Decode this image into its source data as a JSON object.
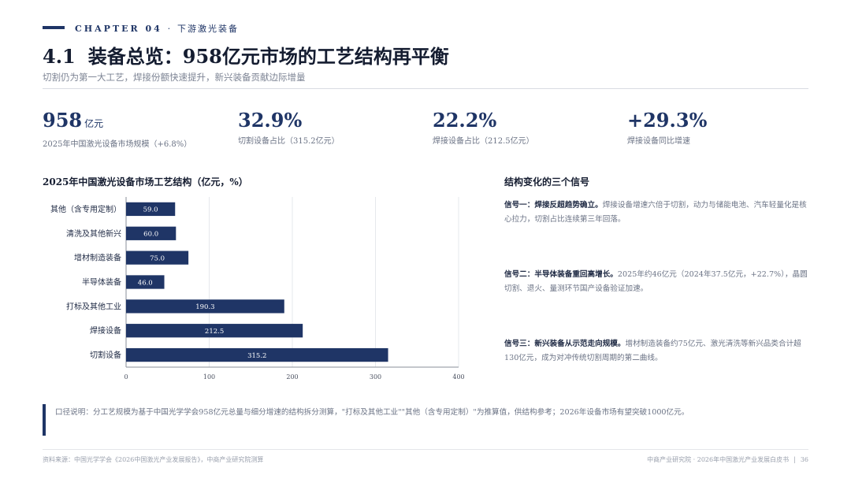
{
  "header": {
    "chapter": "CHAPTER 04",
    "chapter_sep": "·",
    "chapter_sub": "下游激光装备",
    "section_num": "4.1",
    "title": "装备总览：958亿元市场的工艺结构再平衡",
    "subtitle": "切割仍为第一大工艺，焊接份额快速提升，新兴装备贡献边际增量"
  },
  "kpis": [
    {
      "value": "958",
      "unit": "亿元",
      "label": "2025年中国激光设备市场规模（+6.8%）"
    },
    {
      "value": "32.9%",
      "unit": "",
      "label": "切割设备占比（315.2亿元）"
    },
    {
      "value": "22.2%",
      "unit": "",
      "label": "焊接设备占比（212.5亿元）"
    },
    {
      "value": "+29.3%",
      "unit": "",
      "label": "焊接设备同比增速"
    }
  ],
  "chart_title": "2025年中国激光设备市场工艺结构（亿元，%）",
  "chart_data": {
    "type": "bar",
    "orientation": "horizontal",
    "categories": [
      "其他（含专用定制）",
      "清洗及其他新兴",
      "增材制造装备",
      "半导体装备",
      "打标及其他工业",
      "焊接设备",
      "切割设备"
    ],
    "values": [
      59.0,
      60.0,
      75.0,
      46.0,
      190.3,
      212.5,
      315.2
    ],
    "value_labels": [
      "59.0",
      "60.0",
      "75.0",
      "46.0",
      "190.3",
      "212.5",
      "315.2"
    ],
    "xlim": [
      0,
      400
    ],
    "xticks": [
      "0",
      "100",
      "200",
      "300",
      "400"
    ],
    "xtick_values": [
      0,
      100,
      200,
      300,
      400
    ],
    "grid": true,
    "bar_color": "#1f3566"
  },
  "signals": {
    "title": "结构变化的三个信号",
    "items": [
      {
        "lead": "信号一：焊接反超趋势确立。",
        "text": "焊接设备增速六倍于切割，动力与储能电池、汽车轻量化是核心拉力，切割占比连续第三年回落。"
      },
      {
        "lead": "信号二：半导体装备重回高增长。",
        "text": "2025年约46亿元（2024年37.5亿元，+22.7%），晶圆切割、退火、量测环节国产设备验证加速。"
      },
      {
        "lead": "信号三：新兴装备从示范走向规模。",
        "text": "增材制造装备约75亿元、激光清洗等新兴品类合计超130亿元，成为对冲传统切割周期的第二曲线。"
      }
    ]
  },
  "note": "口径说明：分工艺规模为基于中国光学学会958亿元总量与细分增速的结构拆分测算，\"打标及其他工业\"\"其他（含专用定制）\"为推算值，供结构参考；2026年设备市场有望突破1000亿元。",
  "footer": {
    "source": "资料来源：中国光学学会《2026中国激光产业发展报告》，中商产业研究院测算",
    "org": "中商产业研究院 · 2026年中国激光产业发展白皮书",
    "sep": "|",
    "page": "36"
  },
  "colors": {
    "accent": "#1f3566",
    "text": "#141c30",
    "muted": "#6b7385"
  }
}
